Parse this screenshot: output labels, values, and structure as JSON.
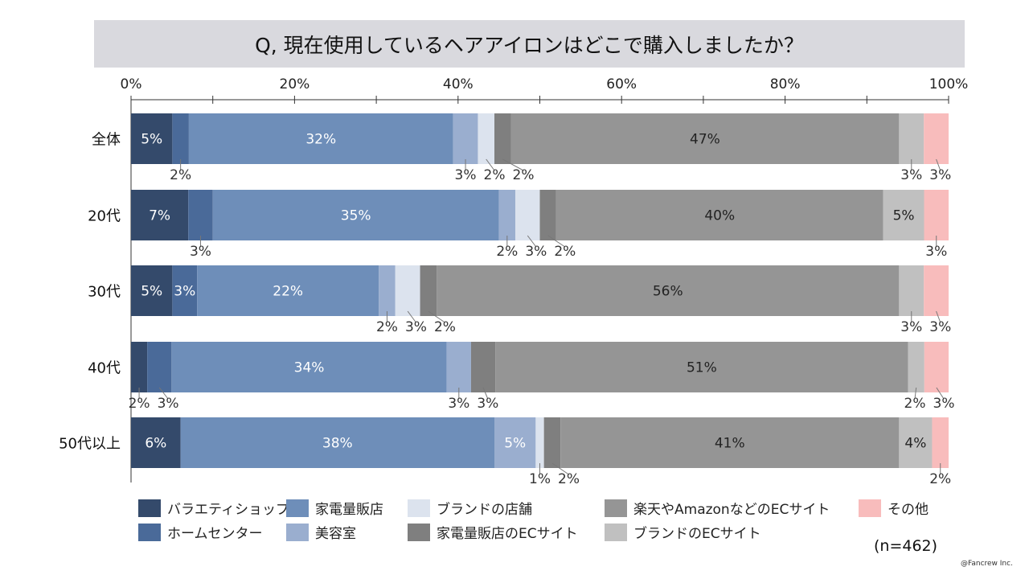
{
  "chart_data": {
    "type": "bar",
    "orientation": "horizontal-stacked-100",
    "title": "Q, 現在使用しているヘアアイロンはどこで購入しましたか？",
    "categories": [
      "全体",
      "20代",
      "30代",
      "40代",
      "50代以上"
    ],
    "x_ticks": [
      "0%",
      "20%",
      "40%",
      "60%",
      "80%",
      "100%"
    ],
    "xlim": [
      0,
      100
    ],
    "series": [
      {
        "name": "バラエティショップ",
        "color": "#344a6b",
        "values": [
          5,
          7,
          5,
          2,
          6
        ]
      },
      {
        "name": "ホームセンター",
        "color": "#4a6a99",
        "values": [
          2,
          3,
          3,
          3,
          0
        ]
      },
      {
        "name": "家電量販店",
        "color": "#6e8eb9",
        "values": [
          32,
          35,
          22,
          34,
          38
        ]
      },
      {
        "name": "美容室",
        "color": "#9aaecf",
        "values": [
          3,
          2,
          2,
          3,
          5
        ]
      },
      {
        "name": "ブランドの店舗",
        "color": "#dce3ee",
        "values": [
          2,
          3,
          3,
          0,
          1
        ]
      },
      {
        "name": "家電量販店のECサイト",
        "color": "#7f7f7f",
        "values": [
          2,
          2,
          2,
          3,
          2
        ]
      },
      {
        "name": "楽天やAmazonなどのECサイト",
        "color": "#959595",
        "values": [
          47,
          40,
          56,
          51,
          41
        ]
      },
      {
        "name": "ブランドのECサイト",
        "color": "#c0c0c0",
        "values": [
          3,
          5,
          3,
          2,
          4
        ]
      },
      {
        "name": "その他",
        "color": "#f8bcbc",
        "values": [
          3,
          3,
          3,
          3,
          2
        ]
      }
    ],
    "label_pos": [
      [
        "inside",
        "below",
        "inside",
        "below",
        "below",
        "below",
        "inside",
        "below",
        "below"
      ],
      [
        "inside",
        "below",
        "inside",
        "below",
        "below",
        "below",
        "inside",
        "inside",
        "below"
      ],
      [
        "inside",
        "inside",
        "inside",
        "below",
        "below",
        "below",
        "inside",
        "below",
        "below"
      ],
      [
        "below",
        "below",
        "inside",
        "below",
        "none",
        "below",
        "inside",
        "below",
        "below"
      ],
      [
        "inside",
        "none",
        "inside",
        "inside",
        "below",
        "below",
        "inside",
        "inside",
        "below"
      ]
    ],
    "legend_placement": "bottom",
    "note": "(n=462)"
  },
  "footer": {
    "sample_size": "(n=462)",
    "copyright": "@Fancrew Inc."
  }
}
